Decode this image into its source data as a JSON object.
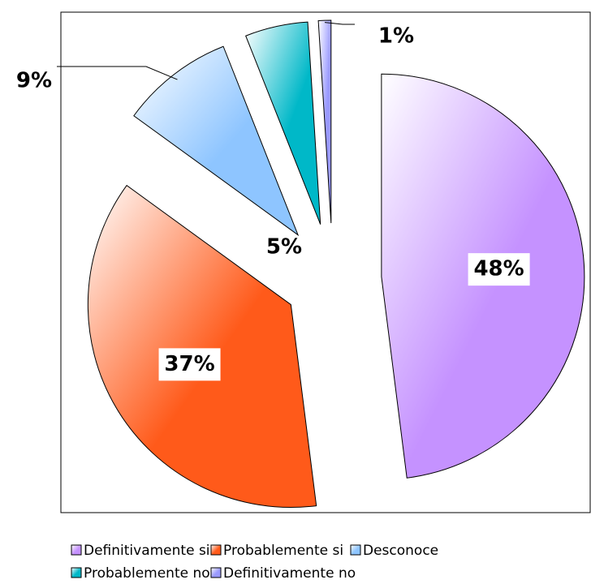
{
  "chart_data": {
    "type": "pie",
    "categories": [
      "Definitivamente si",
      "Probablemente si",
      "Desconoce",
      "Probablemente no",
      "Definitivamente no"
    ],
    "values": [
      48,
      37,
      9,
      5,
      1
    ],
    "value_labels": [
      "48%",
      "37%",
      "9%",
      "5%",
      "1%"
    ],
    "colors": [
      "#c592ff",
      "#ff5a1a",
      "#8ec5ff",
      "#00b8c8",
      "#9a9aff"
    ],
    "legend": "bottom"
  }
}
